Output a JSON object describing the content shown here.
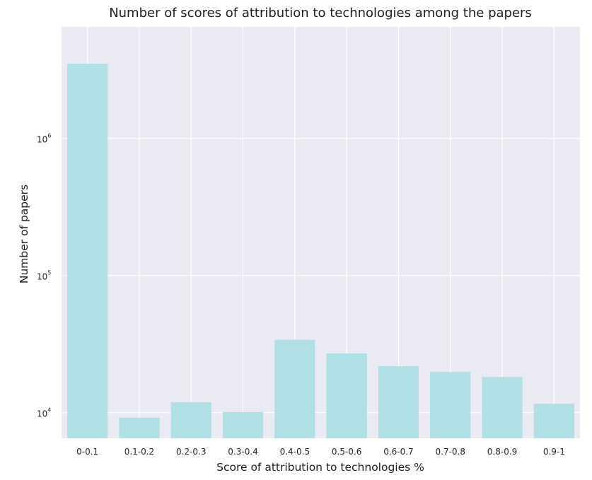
{
  "chart_data": {
    "type": "bar",
    "title": "Number of scores of attribution to technologies among the papers",
    "xlabel": "Score of attribution to technologies %",
    "ylabel": "Number of papers",
    "yscale": "log",
    "ylim": [
      6500,
      6500000
    ],
    "grid": true,
    "categories": [
      "0-0.1",
      "0.1-0.2",
      "0.2-0.3",
      "0.3-0.4",
      "0.4-0.5",
      "0.5-0.6",
      "0.6-0.7",
      "0.7-0.8",
      "0.8-0.9",
      "0.9-1"
    ],
    "values": [
      3500000,
      9200,
      11900,
      10100,
      34000,
      27000,
      21800,
      19800,
      18200,
      11600
    ],
    "yticks": [
      {
        "value": 10000,
        "base": "10",
        "exp": "4"
      },
      {
        "value": 100000,
        "base": "10",
        "exp": "5"
      },
      {
        "value": 1000000,
        "base": "10",
        "exp": "6"
      }
    ],
    "colors": {
      "bar": "#b0dfe5",
      "plot_background": "#eaeaf2",
      "grid": "#ffffff"
    }
  }
}
